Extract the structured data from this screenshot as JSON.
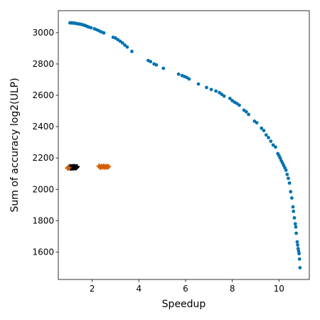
{
  "chart_data": {
    "type": "scatter",
    "xlabel": "Speedup",
    "ylabel": "Sum of accuracy log2(ULP)",
    "xlim": [
      0.55,
      11.3
    ],
    "ylim": [
      1425,
      3140
    ],
    "xticks": [
      2,
      4,
      6,
      8,
      10
    ],
    "yticks": [
      1600,
      1800,
      2000,
      2200,
      2400,
      2600,
      2800,
      3000
    ],
    "grid": false,
    "series": [
      {
        "color": "#0072b2",
        "marker": "circle",
        "points": [
          [
            1.05,
            3062
          ],
          [
            1.12,
            3062
          ],
          [
            1.18,
            3061
          ],
          [
            1.25,
            3060
          ],
          [
            1.32,
            3058
          ],
          [
            1.4,
            3056
          ],
          [
            1.48,
            3054
          ],
          [
            1.55,
            3052
          ],
          [
            1.62,
            3049
          ],
          [
            1.7,
            3045
          ],
          [
            1.78,
            3040
          ],
          [
            1.85,
            3036
          ],
          [
            1.95,
            3031
          ],
          [
            2.1,
            3024
          ],
          [
            2.2,
            3018
          ],
          [
            2.3,
            3011
          ],
          [
            2.4,
            3004
          ],
          [
            2.5,
            2998
          ],
          [
            2.9,
            2970
          ],
          [
            3.0,
            2965
          ],
          [
            3.1,
            2955
          ],
          [
            3.2,
            2945
          ],
          [
            3.3,
            2934
          ],
          [
            3.4,
            2920
          ],
          [
            3.5,
            2908
          ],
          [
            3.7,
            2880
          ],
          [
            4.4,
            2822
          ],
          [
            4.5,
            2815
          ],
          [
            4.65,
            2800
          ],
          [
            4.75,
            2794
          ],
          [
            5.05,
            2772
          ],
          [
            5.7,
            2735
          ],
          [
            5.85,
            2726
          ],
          [
            5.95,
            2720
          ],
          [
            6.05,
            2714
          ],
          [
            6.15,
            2704
          ],
          [
            6.55,
            2672
          ],
          [
            6.9,
            2650
          ],
          [
            7.1,
            2637
          ],
          [
            7.3,
            2627
          ],
          [
            7.45,
            2617
          ],
          [
            7.55,
            2606
          ],
          [
            7.65,
            2595
          ],
          [
            7.9,
            2580
          ],
          [
            8.0,
            2566
          ],
          [
            8.1,
            2556
          ],
          [
            8.2,
            2548
          ],
          [
            8.3,
            2537
          ],
          [
            8.5,
            2505
          ],
          [
            8.6,
            2495
          ],
          [
            8.7,
            2478
          ],
          [
            8.95,
            2435
          ],
          [
            9.05,
            2425
          ],
          [
            9.25,
            2390
          ],
          [
            9.35,
            2375
          ],
          [
            9.45,
            2347
          ],
          [
            9.55,
            2330
          ],
          [
            9.65,
            2307
          ],
          [
            9.75,
            2283
          ],
          [
            9.85,
            2270
          ],
          [
            9.95,
            2228
          ],
          [
            10.0,
            2215
          ],
          [
            10.05,
            2200
          ],
          [
            10.1,
            2183
          ],
          [
            10.15,
            2168
          ],
          [
            10.2,
            2153
          ],
          [
            10.25,
            2138
          ],
          [
            10.3,
            2122
          ],
          [
            10.35,
            2095
          ],
          [
            10.4,
            2070
          ],
          [
            10.45,
            2040
          ],
          [
            10.5,
            1985
          ],
          [
            10.55,
            1945
          ],
          [
            10.6,
            1888
          ],
          [
            10.62,
            1860
          ],
          [
            10.66,
            1818
          ],
          [
            10.7,
            1780
          ],
          [
            10.72,
            1760
          ],
          [
            10.74,
            1720
          ],
          [
            10.78,
            1665
          ],
          [
            10.8,
            1645
          ],
          [
            10.82,
            1622
          ],
          [
            10.84,
            1605
          ],
          [
            10.86,
            1590
          ],
          [
            10.88,
            1555
          ],
          [
            10.9,
            1500
          ]
        ]
      },
      {
        "color": "#000000",
        "marker": "plus",
        "points": [
          [
            1.0,
            2140
          ],
          [
            1.05,
            2145
          ],
          [
            1.08,
            2135
          ],
          [
            1.1,
            2142
          ],
          [
            1.12,
            2138
          ],
          [
            1.15,
            2144
          ],
          [
            1.18,
            2136
          ],
          [
            1.2,
            2141
          ],
          [
            1.22,
            2146
          ],
          [
            1.25,
            2139
          ],
          [
            1.28,
            2143
          ],
          [
            1.3,
            2137
          ],
          [
            1.33,
            2141
          ],
          [
            1.35,
            2145
          ]
        ]
      },
      {
        "color": "#d55e00",
        "marker": "plus",
        "points": [
          [
            0.95,
            2135
          ],
          [
            1.0,
            2138
          ],
          [
            2.3,
            2148
          ],
          [
            2.35,
            2140
          ],
          [
            2.4,
            2146
          ],
          [
            2.45,
            2143
          ],
          [
            2.5,
            2147
          ],
          [
            2.55,
            2141
          ],
          [
            2.6,
            2146
          ],
          [
            2.65,
            2143
          ],
          [
            2.7,
            2145
          ]
        ]
      }
    ]
  }
}
